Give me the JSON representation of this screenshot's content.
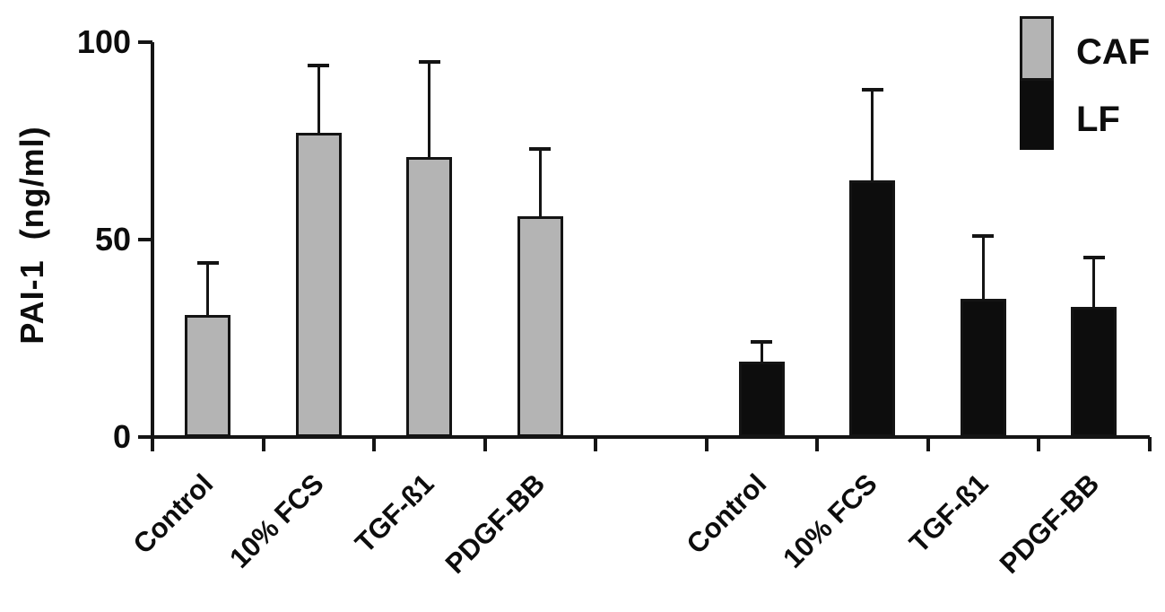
{
  "figure": {
    "background": "#ffffff",
    "axis_color": "#151515"
  },
  "y_axis": {
    "label": "PAI-1  (ng/ml)",
    "tick_labels": [
      "0",
      "50",
      "100"
    ]
  },
  "legend": {
    "items": [
      {
        "label": "CAF",
        "color": "#b4b4b4"
      },
      {
        "label": "LF",
        "color": "#0d0d0d"
      }
    ]
  },
  "chart_data": {
    "type": "bar",
    "title": "",
    "xlabel": "",
    "ylabel": "PAI-1 (ng/ml)",
    "categories": [
      "Control",
      "10% FCS",
      "TGF-ß1",
      "PDGF-BB"
    ],
    "series": [
      {
        "name": "CAF",
        "color": "#b4b4b4",
        "values": [
          31,
          77,
          71,
          56
        ],
        "errors": [
          13,
          17,
          24,
          17
        ]
      },
      {
        "name": "LF",
        "color": "#0d0d0d",
        "values": [
          19,
          65,
          35,
          33
        ],
        "errors": [
          5,
          23,
          16,
          12.5
        ]
      }
    ],
    "ylim": [
      0,
      100
    ],
    "yticks": [
      0,
      50,
      100
    ],
    "grid": false,
    "error_bars": "upper-only",
    "legend_position": "top-right",
    "layout": "two-separated-clusters",
    "cluster_gap_slots": 1
  }
}
